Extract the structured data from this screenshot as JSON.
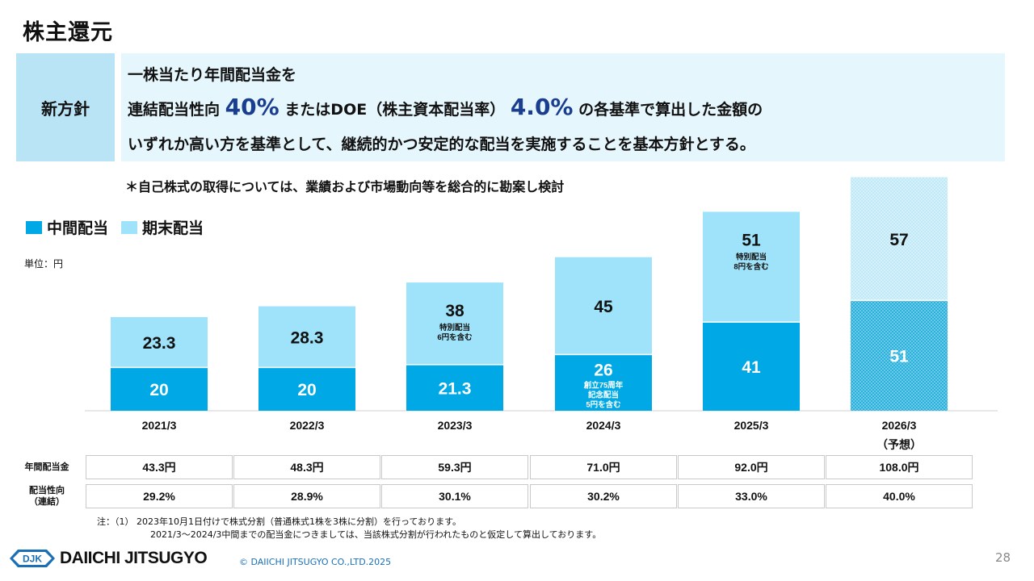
{
  "title": "株主還元",
  "policy": {
    "label": "新方針",
    "line1": "一株当たり年間配当金を",
    "line2_a": "連結配当性向",
    "line2_b": "40%",
    "line2_c": "またはDOE（株主資本配当率）",
    "line2_d": "4.0%",
    "line2_e": "の各基準で算出した金額の",
    "line3": "いずれか高い方を基準として、継続的かつ安定的な配当を実施することを基本方針とする。"
  },
  "note": "＊自己株式の取得については、業績および市場動向等を総合的に勘案し検討",
  "legend": {
    "interim": "中間配当",
    "year_end": "期末配当"
  },
  "unit": "単位：円",
  "colors": {
    "interim": "#00a9e6",
    "year_end": "#9fe3fa",
    "forecast_interim": "#2ab1dc",
    "forecast_year_end": "#bfe9f6",
    "title_blue": "#1a3e8f"
  },
  "chart_data": {
    "type": "bar",
    "stacked": true,
    "categories": [
      "2021/3",
      "2022/3",
      "2023/3",
      "2024/3",
      "2025/3",
      "2026/3"
    ],
    "category_sublabels": [
      "",
      "",
      "",
      "",
      "",
      "（予想）"
    ],
    "series": [
      {
        "name": "中間配当",
        "values": [
          20,
          20,
          21.3,
          26,
          41,
          51
        ],
        "labels": [
          "20",
          "20",
          "21.3",
          "26",
          "41",
          "51"
        ]
      },
      {
        "name": "期末配当",
        "values": [
          23.3,
          28.3,
          38,
          45,
          51,
          57
        ],
        "labels": [
          "23.3",
          "28.3",
          "38",
          "45",
          "51",
          "57"
        ]
      }
    ],
    "annotations": [
      {
        "category": "2023/3",
        "series": "期末配当",
        "text": [
          "特別配当",
          "6円を含む"
        ]
      },
      {
        "category": "2024/3",
        "series": "中間配当",
        "text": [
          "創立75周年",
          "記念配当",
          "5円を含む"
        ]
      },
      {
        "category": "2025/3",
        "series": "期末配当",
        "text": [
          "特別配当",
          "8円を含む"
        ]
      }
    ],
    "forecast_category": "2026/3"
  },
  "table": {
    "rows": [
      {
        "label": [
          "年間配当金"
        ],
        "values": [
          "43.3円",
          "48.3円",
          "59.3円",
          "71.0円",
          "92.0円",
          "108.0円"
        ]
      },
      {
        "label": [
          "配当性向",
          "（連結）"
        ],
        "values": [
          "29.2%",
          "28.9%",
          "30.1%",
          "30.2%",
          "33.0%",
          "40.0%"
        ]
      }
    ]
  },
  "footnote": {
    "line1": "注：（1） 2023年10月1日付けで株式分割（普通株式1株を3株に分割）を行っております。",
    "line2": "2021/3～2024/3中間までの配当金につきましては、当該株式分割が行われたものと仮定して算出しております。"
  },
  "footer": {
    "logo_mark": "DJK",
    "logo_text": "DAIICHI JITSUGYO",
    "copyright": "© DAIICHI JITSUGYO CO.,LTD.2025",
    "page_number": "28"
  }
}
